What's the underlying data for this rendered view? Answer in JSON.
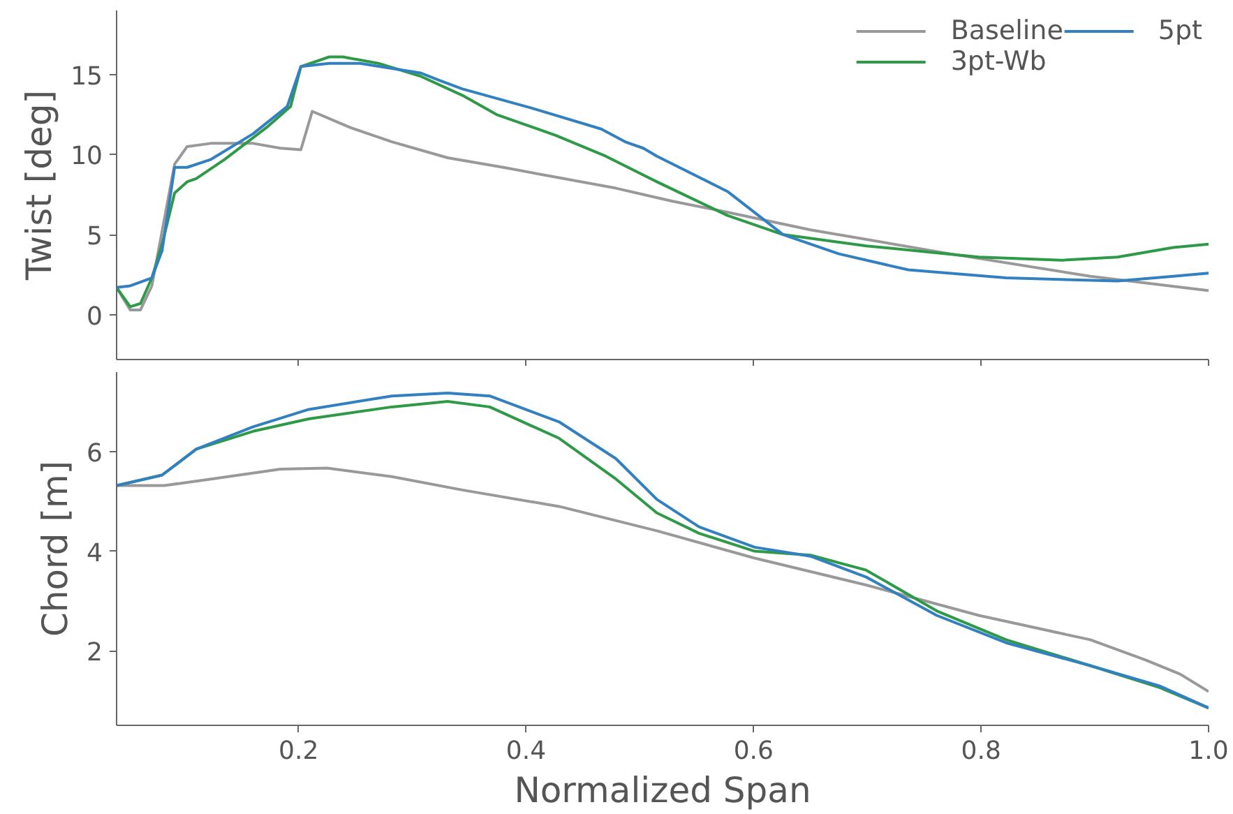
{
  "chart_data": [
    {
      "type": "line",
      "ylabel": "Twist [deg]",
      "xlim": [
        0.04,
        1.0
      ],
      "ylim": [
        -2.8,
        19
      ],
      "xticks": [
        {
          "value": 0.2,
          "label": null
        },
        {
          "value": 0.4,
          "label": null
        },
        {
          "value": 0.6,
          "label": null
        },
        {
          "value": 0.8,
          "label": null
        },
        {
          "value": 1.0,
          "label": null
        }
      ],
      "yticks": [
        0,
        5,
        10,
        15
      ],
      "tick_labels": "y",
      "grid": false,
      "legend": "top right",
      "line_style": "solid",
      "marker": "none",
      "series": [
        {
          "name": "Baseline",
          "color": "#999999",
          "x": [
            0.04,
            0.052,
            0.061,
            0.071,
            0.091,
            0.102,
            0.123,
            0.16,
            0.184,
            0.202,
            0.212,
            0.245,
            0.282,
            0.331,
            0.38,
            0.433,
            0.479,
            0.528,
            0.577,
            0.65,
            0.773,
            0.896,
            1.0
          ],
          "values": [
            1.7,
            0.3,
            0.3,
            1.8,
            9.4,
            10.5,
            10.7,
            10.7,
            10.4,
            10.3,
            12.7,
            11.7,
            10.8,
            9.8,
            9.2,
            8.5,
            7.9,
            7.1,
            6.4,
            5.3,
            3.8,
            2.4,
            1.5
          ]
        },
        {
          "name": "3pt-Wb",
          "color": "#2e9a48",
          "x": [
            0.04,
            0.052,
            0.061,
            0.071,
            0.08,
            0.091,
            0.102,
            0.11,
            0.135,
            0.172,
            0.193,
            0.202,
            0.227,
            0.239,
            0.27,
            0.307,
            0.344,
            0.374,
            0.426,
            0.47,
            0.515,
            0.577,
            0.626,
            0.699,
            0.798,
            0.871,
            0.92,
            0.969,
            1.0
          ],
          "values": [
            1.7,
            0.5,
            0.7,
            2.3,
            4.4,
            7.6,
            8.3,
            8.5,
            9.7,
            11.7,
            13.0,
            15.5,
            16.1,
            16.1,
            15.7,
            14.9,
            13.7,
            12.5,
            11.2,
            9.9,
            8.3,
            6.2,
            5.0,
            4.3,
            3.6,
            3.4,
            3.6,
            4.2,
            4.4
          ]
        },
        {
          "name": "5pt",
          "color": "#3380c0",
          "x": [
            0.04,
            0.052,
            0.071,
            0.08,
            0.091,
            0.102,
            0.123,
            0.16,
            0.19,
            0.202,
            0.227,
            0.254,
            0.307,
            0.325,
            0.344,
            0.405,
            0.466,
            0.487,
            0.503,
            0.515,
            0.577,
            0.626,
            0.675,
            0.736,
            0.822,
            0.92,
            0.969,
            1.0
          ],
          "values": [
            1.7,
            1.8,
            2.3,
            4.0,
            9.2,
            9.2,
            9.7,
            11.3,
            13.0,
            15.5,
            15.7,
            15.7,
            15.1,
            14.6,
            14.1,
            12.9,
            11.6,
            10.8,
            10.4,
            9.9,
            7.7,
            5.0,
            3.8,
            2.8,
            2.3,
            2.1,
            2.4,
            2.6
          ]
        }
      ]
    },
    {
      "type": "line",
      "xlabel": "Normalized Span",
      "ylabel": "Chord [m]",
      "xlim": [
        0.04,
        1.0
      ],
      "ylim": [
        0.5,
        7.6
      ],
      "xticks": [
        0.2,
        0.4,
        0.6,
        0.8,
        {
          "value": 1.0,
          "label": "1.0"
        }
      ],
      "yticks": [
        2,
        4,
        6
      ],
      "grid": false,
      "legend": false,
      "line_style": "solid",
      "marker": "none",
      "series": [
        {
          "color": "#999999",
          "x": [
            0.04,
            0.082,
            0.123,
            0.184,
            0.225,
            0.282,
            0.344,
            0.429,
            0.515,
            0.601,
            0.699,
            0.798,
            0.896,
            0.945,
            0.975,
            1.0
          ],
          "values": [
            5.32,
            5.32,
            5.45,
            5.65,
            5.67,
            5.5,
            5.23,
            4.9,
            4.41,
            3.86,
            3.32,
            2.71,
            2.22,
            1.81,
            1.53,
            1.18
          ]
        },
        {
          "color": "#2e9a48",
          "x": [
            0.04,
            0.08,
            0.11,
            0.16,
            0.209,
            0.282,
            0.331,
            0.368,
            0.429,
            0.479,
            0.515,
            0.552,
            0.601,
            0.65,
            0.699,
            0.761,
            0.822,
            0.896,
            0.957,
            1.0
          ],
          "values": [
            5.32,
            5.53,
            6.05,
            6.41,
            6.66,
            6.9,
            7.01,
            6.9,
            6.27,
            5.45,
            4.77,
            4.36,
            4.0,
            3.92,
            3.62,
            2.8,
            2.22,
            1.7,
            1.26,
            0.85
          ]
        },
        {
          "color": "#3380c0",
          "x": [
            0.04,
            0.08,
            0.11,
            0.16,
            0.209,
            0.282,
            0.331,
            0.368,
            0.429,
            0.479,
            0.515,
            0.552,
            0.601,
            0.65,
            0.699,
            0.761,
            0.822,
            0.896,
            0.957,
            1.0
          ],
          "values": [
            5.32,
            5.53,
            6.05,
            6.5,
            6.85,
            7.12,
            7.18,
            7.12,
            6.6,
            5.86,
            5.04,
            4.49,
            4.08,
            3.9,
            3.48,
            2.71,
            2.16,
            1.7,
            1.29,
            0.85
          ]
        }
      ]
    }
  ]
}
